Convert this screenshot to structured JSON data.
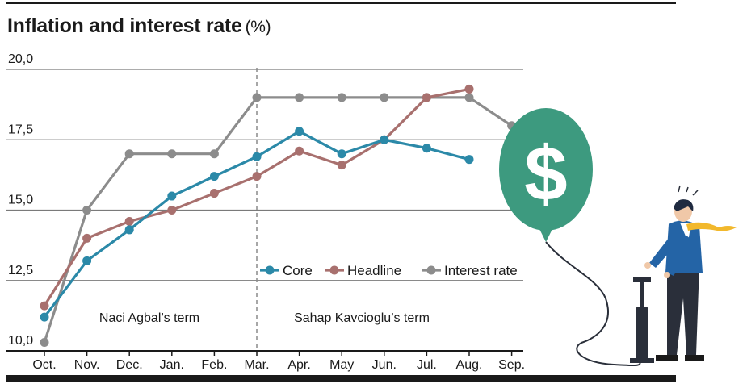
{
  "title": "Inflation and interest rate",
  "title_unit": "(%)",
  "term_labels": {
    "left": "Naci Agbal’s term",
    "right": "Sahap Kavcioglu’s term"
  },
  "illustration": {
    "balloon_symbol": "$",
    "balloon_color": "#3d9a7f",
    "description_icon": "man-inflating-dollar-balloon-icon"
  },
  "chart_data": {
    "type": "line",
    "categories": [
      "Oct.",
      "Nov.",
      "Dec.",
      "Jan.",
      "Feb.",
      "Mar.",
      "Apr.",
      "May",
      "Jun.",
      "Jul.",
      "Aug.",
      "Sep."
    ],
    "ylim": [
      10.0,
      20.0
    ],
    "yticks": [
      "10,0",
      "12,5",
      "15,0",
      "17,5",
      "20,0"
    ],
    "ytick_values": [
      10.0,
      12.5,
      15.0,
      17.5,
      20.0
    ],
    "term_divider_category": "Mar.",
    "legend_position": "bottom-right",
    "series": [
      {
        "name": "Core",
        "color": "#2b89a8",
        "values": [
          11.2,
          13.2,
          14.3,
          15.5,
          16.2,
          16.9,
          17.8,
          17.0,
          17.5,
          17.2,
          16.8,
          null
        ]
      },
      {
        "name": "Headline",
        "color": "#a8706e",
        "values": [
          11.6,
          14.0,
          14.6,
          15.0,
          15.6,
          16.2,
          17.1,
          16.6,
          17.5,
          19.0,
          19.3,
          null
        ]
      },
      {
        "name": "Interest rate",
        "color": "#8c8c8c",
        "values": [
          10.3,
          15.0,
          17.0,
          17.0,
          17.0,
          19.0,
          19.0,
          19.0,
          19.0,
          19.0,
          19.0,
          18.0
        ]
      }
    ]
  }
}
